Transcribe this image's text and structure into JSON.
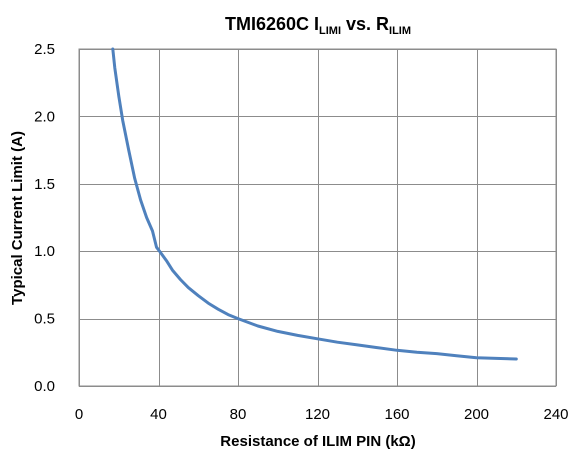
{
  "chart_data": {
    "type": "line",
    "title": {
      "main": "TMI6260C I",
      "sub1": "LIMI",
      "mid": " vs. R",
      "sub2": "ILIM"
    },
    "xlabel": "Resistance of ILIM PIN (kΩ)",
    "ylabel": "Typical Current Limit  (A)",
    "xlim": [
      0,
      240
    ],
    "ylim": [
      0,
      2.5
    ],
    "x_ticks": [
      0,
      40,
      80,
      120,
      160,
      200,
      240
    ],
    "x_tick_labels": [
      "0",
      "40",
      "80",
      "120",
      "160",
      "200",
      "240"
    ],
    "y_ticks": [
      0,
      0.5,
      1.0,
      1.5,
      2.0,
      2.5
    ],
    "y_tick_labels": [
      "0.0",
      "0.5",
      "1.0",
      "1.5",
      "2.0",
      "2.5"
    ],
    "grid": true,
    "series": [
      {
        "color": "#4f81bd",
        "x": [
          17,
          18,
          20,
          22,
          25,
          28,
          31,
          34,
          37,
          39,
          41,
          44,
          47,
          51,
          55,
          60,
          65,
          70,
          75,
          80,
          90,
          100,
          110,
          120,
          130,
          140,
          150,
          160,
          170,
          180,
          190,
          200,
          210,
          220
        ],
        "y": [
          2.5,
          2.36,
          2.15,
          1.97,
          1.75,
          1.54,
          1.38,
          1.25,
          1.15,
          1.03,
          0.99,
          0.93,
          0.86,
          0.79,
          0.73,
          0.67,
          0.615,
          0.57,
          0.53,
          0.5,
          0.445,
          0.405,
          0.375,
          0.35,
          0.325,
          0.305,
          0.285,
          0.265,
          0.25,
          0.24,
          0.225,
          0.21,
          0.205,
          0.2
        ]
      }
    ]
  }
}
